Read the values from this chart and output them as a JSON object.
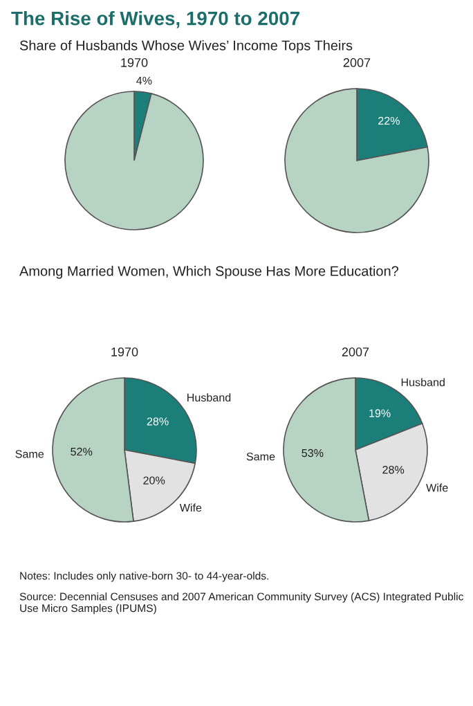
{
  "chart_data": [
    {
      "type": "pie",
      "title": "1970",
      "annotations": [
        "The Rise of Wives, 1970 to 2007",
        "Share of Husbands Whose Wives’ Income Tops Theirs"
      ],
      "categories": [
        null,
        null
      ],
      "values": [
        4,
        96
      ],
      "value_labels": [
        "4%",
        null
      ],
      "colors": [
        "#1b7e78",
        "#b7d3c3"
      ]
    },
    {
      "type": "pie",
      "title": "2007",
      "categories": [
        null,
        null
      ],
      "values": [
        22,
        78
      ],
      "value_labels": [
        "22%",
        null
      ],
      "colors": [
        "#1b7e78",
        "#b7d3c3"
      ]
    },
    {
      "type": "pie",
      "title": "1970",
      "annotations": [
        "Among Married Women, Which Spouse Has More Education?"
      ],
      "categories": [
        "Husband",
        "Wife",
        "Same"
      ],
      "values": [
        28,
        20,
        52
      ],
      "value_labels": [
        "28%",
        "20%",
        "52%"
      ],
      "colors": [
        "#1b7e78",
        "#e2e2e2",
        "#b7d3c3"
      ]
    },
    {
      "type": "pie",
      "title": "2007",
      "annotations": [
        "Notes: Includes only native-born 30- to 44-year-olds.",
        "Source: Decennial Censuses and 2007 American Community Survey (ACS) Integrated Public Use Micro Samples (IPUMS)"
      ],
      "categories": [
        "Husband",
        "Wife",
        "Same"
      ],
      "values": [
        19,
        28,
        53
      ],
      "value_labels": [
        "19%",
        "28%",
        "53%"
      ],
      "colors": [
        "#1b7e78",
        "#e2e2e2",
        "#b7d3c3"
      ]
    }
  ]
}
